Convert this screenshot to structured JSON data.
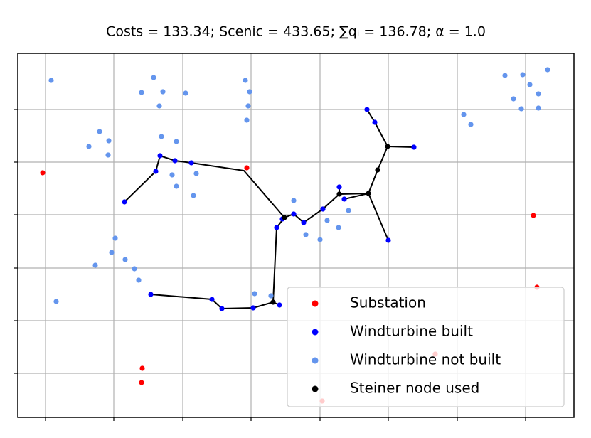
{
  "chart_data": {
    "type": "scatter",
    "title": "Costs = 133.34; Scenic = 433.65; ∑qᵢ = 136.78; α = 1.0",
    "xlim": [
      25,
      807
    ],
    "ylim": [
      0,
      512
    ],
    "xticks": [
      64,
      160,
      257,
      353,
      450,
      546,
      643,
      739
    ],
    "yticks": [
      62,
      136,
      210,
      285,
      359,
      433
    ],
    "grid": true,
    "legend": "lower right",
    "series": [
      {
        "name": "Substation",
        "color": "#ff0000",
        "x": [
          60,
          347,
          750,
          755,
          200,
          199,
          612,
          453
        ],
        "y": [
          344,
          351,
          284,
          183,
          69,
          49,
          89,
          23
        ]
      },
      {
        "name": "Windturbine built",
        "color": "#0000ff",
        "x": [
          516,
          527,
          582,
          225,
          246,
          269,
          219,
          175,
          477,
          484,
          454,
          413,
          397,
          427,
          389,
          546,
          212,
          298,
          312,
          356,
          393
        ],
        "y": [
          433,
          415,
          380,
          368,
          361,
          358,
          346,
          303,
          324,
          307,
          293,
          286,
          279,
          274,
          267,
          249,
          173,
          166,
          153,
          154,
          158
        ]
      },
      {
        "name": "Windturbine not built",
        "color": "#6495ed",
        "x": [
          72,
          216,
          199,
          229,
          261,
          224,
          345,
          351,
          349,
          347,
          710,
          735,
          770,
          745,
          722,
          757,
          733,
          757,
          652,
          662,
          140,
          125,
          153,
          152,
          227,
          248,
          276,
          242,
          248,
          272,
          413,
          490,
          460,
          476,
          430,
          450,
          162,
          157,
          134,
          176,
          189,
          195,
          79,
          358,
          381
        ],
        "y": [
          474,
          478,
          457,
          458,
          456,
          438,
          474,
          458,
          438,
          418,
          481,
          482,
          489,
          468,
          448,
          455,
          434,
          435,
          426,
          412,
          402,
          381,
          389,
          369,
          395,
          388,
          343,
          341,
          325,
          312,
          305,
          291,
          277,
          267,
          257,
          250,
          252,
          232,
          214,
          222,
          209,
          193,
          163,
          174,
          171
        ]
      },
      {
        "name": "Steiner node used",
        "color": "#000000",
        "x": [
          545,
          531,
          518,
          477,
          400,
          384
        ],
        "y": [
          381,
          348,
          315,
          314,
          281,
          162
        ]
      }
    ],
    "edges": {
      "color": "#000000",
      "x": [
        516,
        527,
        545,
        582,
        null,
        545,
        531,
        518,
        546,
        null,
        518,
        484,
        null,
        477,
        477,
        454,
        427,
        413,
        400,
        389,
        384,
        356,
        312,
        298,
        212,
        null,
        400,
        343,
        269,
        246,
        225,
        219,
        175,
        null,
        384,
        393,
        null,
        477,
        518
      ],
      "y": [
        433,
        415,
        381,
        380,
        null,
        381,
        348,
        315,
        249,
        null,
        315,
        307,
        null,
        324,
        314,
        293,
        274,
        286,
        281,
        267,
        162,
        154,
        153,
        166,
        173,
        null,
        281,
        347,
        358,
        361,
        368,
        346,
        303,
        null,
        162,
        158,
        null,
        314,
        315
      ]
    }
  }
}
